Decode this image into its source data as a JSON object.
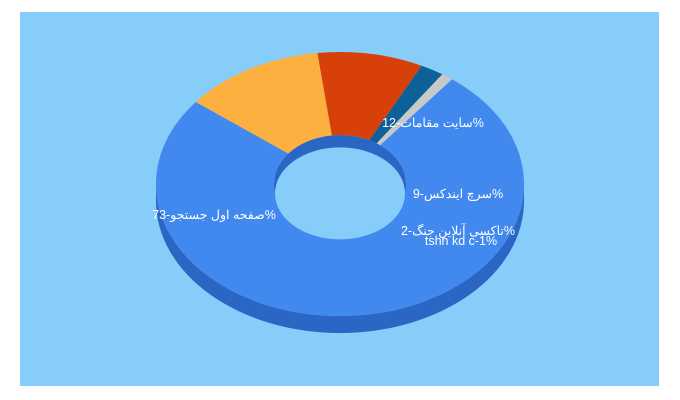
{
  "chart_data": {
    "type": "pie",
    "style": "3d-donut",
    "background": "#87cdf9",
    "slices": [
      {
        "label": "صفحه اول جستجو",
        "value": 73,
        "color": "#4189ee",
        "side": "#2c66c4",
        "label_text": "صفحه اول جستجو-73%"
      },
      {
        "label": "سایت مقامات",
        "value": 12,
        "color": "#fcb040",
        "side": "#d08a22",
        "label_text": "سایت مقامات-12%"
      },
      {
        "label": "سرچ ایندکس",
        "value": 9,
        "color": "#d8400a",
        "side": "#a52f05",
        "label_text": "سرچ ایندکس-9%"
      },
      {
        "label": "تاکسی آنلاین جنگ",
        "value": 2,
        "color": "#0e6198",
        "side": "#084470",
        "label_text": "تاکسی آنلاین جنگ-2%"
      },
      {
        "label": "tshn kd c",
        "value": 1,
        "color": "#c8c8c8",
        "side": "#9a9a9a",
        "label_text": "tshn kd c-1%"
      }
    ]
  }
}
